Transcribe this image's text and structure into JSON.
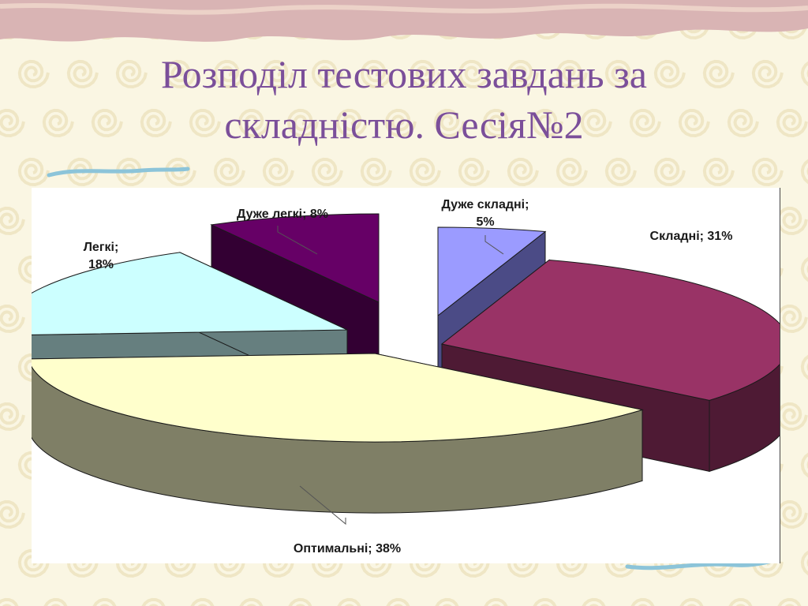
{
  "slide": {
    "title_line1": "Розподіл тестових завдань за",
    "title_line2": "складністю. Сесія№2"
  },
  "colors": {
    "title": "#7b4f9a",
    "background": "#faf6e3",
    "top_band": "#d9b4b4"
  },
  "chart_data": {
    "type": "pie",
    "style": "3d-exploded",
    "slices": [
      {
        "label": "Дуже складні",
        "value": 5,
        "text_line1": "Дуже складні;",
        "text_line2": "5%",
        "color": "#9b9bff",
        "side": "#4b4b86"
      },
      {
        "label": "Складні",
        "value": 31,
        "text_line1": "Складні; 31%",
        "text_line2": "",
        "color": "#993366",
        "side": "#4e1a34"
      },
      {
        "label": "Оптимальні",
        "value": 38,
        "text_line1": "Оптимальні; 38%",
        "text_line2": "",
        "color": "#ffffcc",
        "side": "#7f7f66"
      },
      {
        "label": "Легкі",
        "value": 18,
        "text_line1": "Легкі;",
        "text_line2": "18%",
        "color": "#ccffff",
        "side": "#667f7f"
      },
      {
        "label": "Дуже легкі",
        "value": 8,
        "text_line1": "Дуже легкі; 8%",
        "text_line2": "",
        "color": "#660066",
        "side": "#330033"
      }
    ]
  }
}
